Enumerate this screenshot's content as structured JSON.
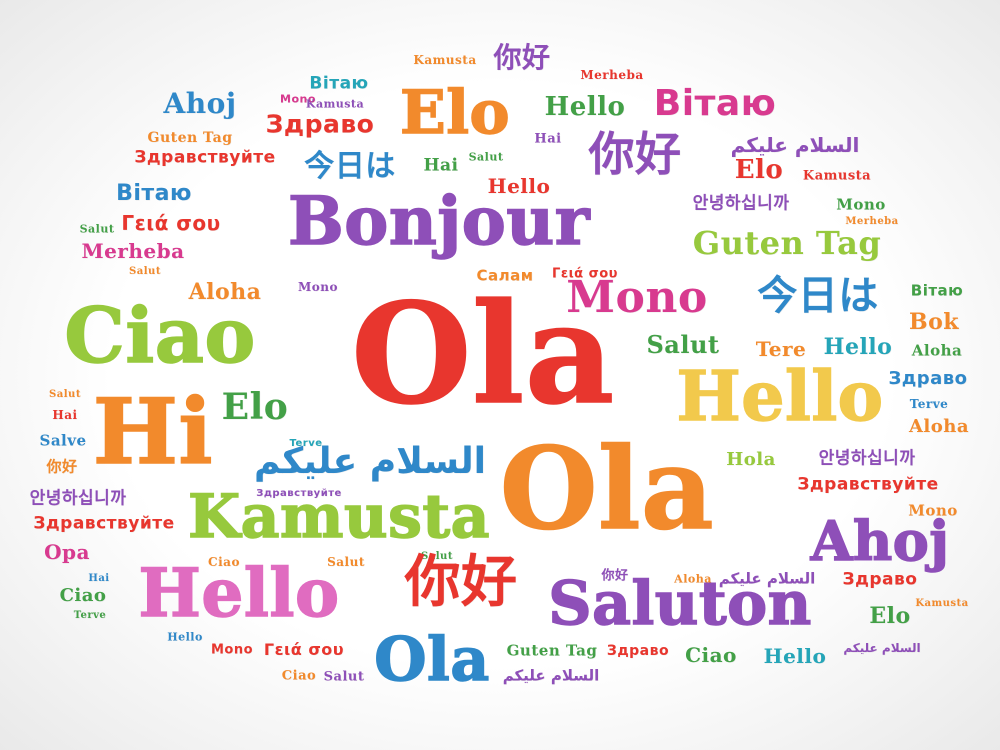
{
  "colors": {
    "red": "#e8362e",
    "orange": "#f28a2c",
    "yellow": "#f2c94c",
    "lime": "#97c93d",
    "green": "#43a047",
    "teal": "#25a5b8",
    "blue": "#2f88c9",
    "purple": "#8e4fb8",
    "magenta": "#d83a8f",
    "pink": "#e06cc0"
  },
  "words": [
    {
      "id": "kamusta-top",
      "text": "Kamusta",
      "color": "orange"
    },
    {
      "id": "nihao-top",
      "text": "你好",
      "color": "purple"
    },
    {
      "id": "merheba-top",
      "text": "Merheba",
      "color": "red"
    },
    {
      "id": "vitayu-1",
      "text": "Вітаю",
      "color": "teal"
    },
    {
      "id": "mono-1",
      "text": "Mono",
      "color": "magenta"
    },
    {
      "id": "kamusta-2",
      "text": "Kamusta",
      "color": "purple"
    },
    {
      "id": "elo-1",
      "text": "Elo",
      "color": "orange"
    },
    {
      "id": "hello-1",
      "text": "Hello",
      "color": "green"
    },
    {
      "id": "vitayu-2",
      "text": "Вітаю",
      "color": "magenta"
    },
    {
      "id": "ahoj-1",
      "text": "Ahoj",
      "color": "blue"
    },
    {
      "id": "zdravo-1",
      "text": "Здраво",
      "color": "red"
    },
    {
      "id": "guten-tag-1",
      "text": "Guten Tag",
      "color": "orange"
    },
    {
      "id": "hai-1",
      "text": "Hai",
      "color": "purple"
    },
    {
      "id": "nihao-2",
      "text": "你好",
      "color": "purple"
    },
    {
      "id": "assalam-1",
      "text": "السلام عليكم",
      "color": "purple"
    },
    {
      "id": "zdravstvuyte-1",
      "text": "Здравствуйте",
      "color": "red"
    },
    {
      "id": "konnichiwa-1",
      "text": "今日は",
      "color": "blue"
    },
    {
      "id": "hai-2",
      "text": "Hai",
      "color": "green"
    },
    {
      "id": "salut-1",
      "text": "Salut",
      "color": "green"
    },
    {
      "id": "elo-2",
      "text": "Elo",
      "color": "red"
    },
    {
      "id": "kamusta-3",
      "text": "Kamusta",
      "color": "red"
    },
    {
      "id": "vitayu-3",
      "text": "Вітаю",
      "color": "blue"
    },
    {
      "id": "hello-2",
      "text": "Hello",
      "color": "red"
    },
    {
      "id": "salut-2",
      "text": "Salut",
      "color": "green"
    },
    {
      "id": "geia-1",
      "text": "Γειά σου",
      "color": "red"
    },
    {
      "id": "bonjour",
      "text": "Bonjour",
      "color": "purple"
    },
    {
      "id": "annyeong-1",
      "text": "안녕하십니까",
      "color": "purple"
    },
    {
      "id": "mono-2",
      "text": "Mono",
      "color": "green"
    },
    {
      "id": "merheba-2",
      "text": "Merheba",
      "color": "orange"
    },
    {
      "id": "merheba-3",
      "text": "Merheba",
      "color": "magenta"
    },
    {
      "id": "guten-tag-2",
      "text": "Guten Tag",
      "color": "lime"
    },
    {
      "id": "salut-3",
      "text": "Salut",
      "color": "orange"
    },
    {
      "id": "salam-1",
      "text": "Салам",
      "color": "orange"
    },
    {
      "id": "geia-2",
      "text": "Γειά σου",
      "color": "red"
    },
    {
      "id": "aloha-1",
      "text": "Aloha",
      "color": "orange"
    },
    {
      "id": "mono-3",
      "text": "Mono",
      "color": "purple"
    },
    {
      "id": "mono-4",
      "text": "Mono",
      "color": "magenta"
    },
    {
      "id": "konnichiwa-2",
      "text": "今日は",
      "color": "blue"
    },
    {
      "id": "vitayu-4",
      "text": "Вітаю",
      "color": "green"
    },
    {
      "id": "ciao-big",
      "text": "Ciao",
      "color": "lime"
    },
    {
      "id": "ola-red",
      "text": "Ola",
      "color": "red"
    },
    {
      "id": "bok-1",
      "text": "Bok",
      "color": "orange"
    },
    {
      "id": "salut-4",
      "text": "Salut",
      "color": "green"
    },
    {
      "id": "tere-1",
      "text": "Tere",
      "color": "orange"
    },
    {
      "id": "hello-3",
      "text": "Hello",
      "color": "teal"
    },
    {
      "id": "aloha-2",
      "text": "Aloha",
      "color": "green"
    },
    {
      "id": "salut-5",
      "text": "Salut",
      "color": "orange"
    },
    {
      "id": "hello-big-yellow",
      "text": "Hello",
      "color": "yellow"
    },
    {
      "id": "zdravo-2",
      "text": "Здраво",
      "color": "blue"
    },
    {
      "id": "hai-3",
      "text": "Hai",
      "color": "red"
    },
    {
      "id": "hi-big",
      "text": "Hi",
      "color": "orange"
    },
    {
      "id": "elo-3",
      "text": "Elo",
      "color": "green"
    },
    {
      "id": "terve-1",
      "text": "Terve",
      "color": "teal"
    },
    {
      "id": "terve-2",
      "text": "Terve",
      "color": "blue"
    },
    {
      "id": "salve-1",
      "text": "Salve",
      "color": "blue"
    },
    {
      "id": "aloha-3",
      "text": "Aloha",
      "color": "orange"
    },
    {
      "id": "assalam-big",
      "text": "السلام عليكم",
      "color": "blue"
    },
    {
      "id": "nihao-3",
      "text": "你好",
      "color": "orange"
    },
    {
      "id": "hola-1",
      "text": "Hola",
      "color": "lime"
    },
    {
      "id": "annyeong-2",
      "text": "안녕하십니까",
      "color": "purple"
    },
    {
      "id": "zdravstvuyte-2",
      "text": "Здравствуйте",
      "color": "purple"
    },
    {
      "id": "ola-orange",
      "text": "Ola",
      "color": "orange"
    },
    {
      "id": "annyeong-3",
      "text": "안녕하십니까",
      "color": "purple"
    },
    {
      "id": "zdravstvuyte-3",
      "text": "Здравствуйте",
      "color": "red"
    },
    {
      "id": "zdravstvuyte-4",
      "text": "Здравствуйте",
      "color": "red"
    },
    {
      "id": "kamusta-big",
      "text": "Kamusta",
      "color": "lime"
    },
    {
      "id": "mono-5",
      "text": "Mono",
      "color": "orange"
    },
    {
      "id": "ahoj-big",
      "text": "Ahoj",
      "color": "purple"
    },
    {
      "id": "opa-1",
      "text": "Opa",
      "color": "magenta"
    },
    {
      "id": "ciao-2",
      "text": "Ciao",
      "color": "orange"
    },
    {
      "id": "salut-6",
      "text": "Salut",
      "color": "orange"
    },
    {
      "id": "salut-7",
      "text": "Salut",
      "color": "green"
    },
    {
      "id": "nihao-big",
      "text": "你好",
      "color": "red"
    },
    {
      "id": "hai-4",
      "text": "Hai",
      "color": "blue"
    },
    {
      "id": "hello-big-pink",
      "text": "Hello",
      "color": "pink"
    },
    {
      "id": "nihao-4",
      "text": "你好",
      "color": "purple"
    },
    {
      "id": "aloha-4",
      "text": "Aloha",
      "color": "orange"
    },
    {
      "id": "assalam-2",
      "text": "السلام عليكم",
      "color": "purple"
    },
    {
      "id": "zdravo-3",
      "text": "Здраво",
      "color": "red"
    },
    {
      "id": "ciao-3",
      "text": "Ciao",
      "color": "green"
    },
    {
      "id": "saluton",
      "text": "Saluton",
      "color": "purple"
    },
    {
      "id": "elo-4",
      "text": "Elo",
      "color": "green"
    },
    {
      "id": "kamusta-4",
      "text": "Kamusta",
      "color": "orange"
    },
    {
      "id": "terve-3",
      "text": "Terve",
      "color": "green"
    },
    {
      "id": "hello-4",
      "text": "Hello",
      "color": "blue"
    },
    {
      "id": "mono-6",
      "text": "Mono",
      "color": "red"
    },
    {
      "id": "geia-3",
      "text": "Γειά σου",
      "color": "red"
    },
    {
      "id": "ola-blue",
      "text": "Ola",
      "color": "blue"
    },
    {
      "id": "guten-tag-3",
      "text": "Guten Tag",
      "color": "green"
    },
    {
      "id": "zdravo-4",
      "text": "Здраво",
      "color": "red"
    },
    {
      "id": "ciao-4",
      "text": "Ciao",
      "color": "green"
    },
    {
      "id": "hello-5",
      "text": "Hello",
      "color": "teal"
    },
    {
      "id": "assalam-3",
      "text": "السلام عليكم",
      "color": "purple"
    },
    {
      "id": "ciao-5",
      "text": "Ciao",
      "color": "orange"
    },
    {
      "id": "salut-8",
      "text": "Salut",
      "color": "purple"
    },
    {
      "id": "assalam-4",
      "text": "السلام عليكم",
      "color": "purple"
    }
  ]
}
